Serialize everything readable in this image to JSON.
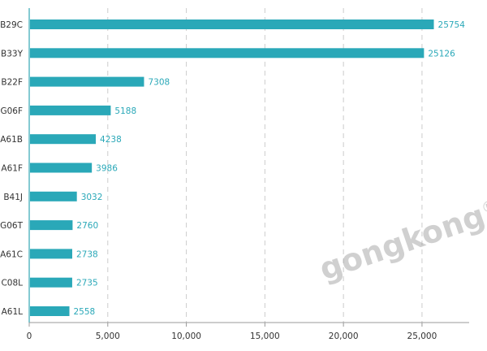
{
  "chart_data": {
    "type": "bar",
    "orientation": "horizontal",
    "categories": [
      "B29C",
      "B33Y",
      "B22F",
      "G06F",
      "A61B",
      "A61F",
      "B41J",
      "G06T",
      "A61C",
      "C08L",
      "A61L"
    ],
    "values": [
      25754,
      25126,
      7308,
      5188,
      4238,
      3986,
      3032,
      2760,
      2738,
      2735,
      2558
    ],
    "xlim": [
      0,
      28000
    ],
    "xticks": [
      0,
      5000,
      10000,
      15000,
      20000,
      25000
    ],
    "xtick_labels": [
      "0",
      "5,000",
      "10,000",
      "15,000",
      "20,000",
      "25,000"
    ],
    "grid": "vertical-dashed",
    "bar_color": "#2aa8b8",
    "label_color": "#2aa8b8"
  },
  "watermark": {
    "text": "gongkong",
    "mark": "®"
  }
}
